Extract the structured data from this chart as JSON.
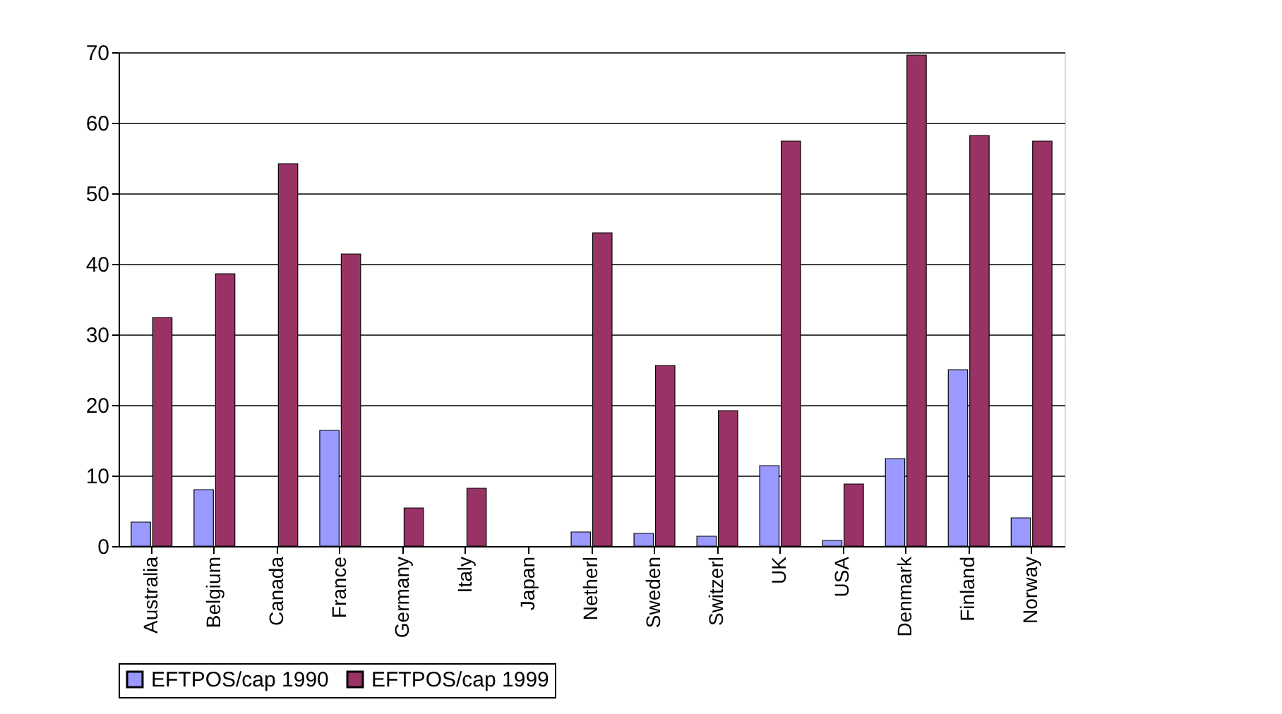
{
  "chart_data": {
    "type": "bar",
    "categories": [
      "Australia",
      "Belgium",
      "Canada",
      "France",
      "Germany",
      "Italy",
      "Japan",
      "Netherl",
      "Sweden",
      "Switzerl",
      "UK",
      "USA",
      "Denmark",
      "Finland",
      "Norway"
    ],
    "series": [
      {
        "name": "EFTPOS/cap 1990",
        "color": "#9999ff",
        "values": [
          3.4,
          8,
          0,
          16.4,
          0,
          0,
          0,
          2,
          1.8,
          1.4,
          11.4,
          0.8,
          12.4,
          25,
          4
        ]
      },
      {
        "name": "EFTPOS/cap 1999",
        "color": "#993366",
        "values": [
          32.4,
          38.6,
          54.2,
          41.4,
          5.4,
          8.2,
          0,
          44.4,
          25.6,
          19.2,
          57.4,
          8.8,
          69.6,
          58.2,
          57.4
        ]
      }
    ],
    "ylim": [
      0,
      70
    ],
    "yticks": [
      0,
      10,
      20,
      30,
      40,
      50,
      60,
      70
    ],
    "grid": "y",
    "legend": "bottom"
  }
}
